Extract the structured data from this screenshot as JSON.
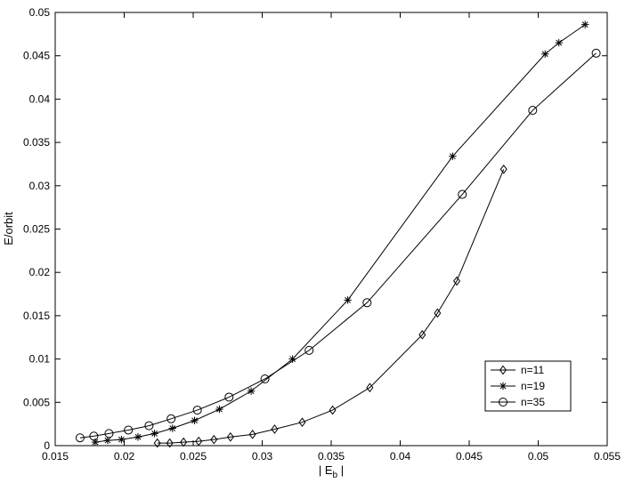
{
  "chart_data": {
    "type": "line",
    "title": "",
    "xlabel": "| E",
    "xlabel_sub": "b",
    "xlabel_suffix": " |",
    "ylabel": "E/orbit",
    "xlim": [
      0.015,
      0.055
    ],
    "ylim": [
      0,
      0.05
    ],
    "xticks": [
      0.015,
      0.02,
      0.025,
      0.03,
      0.035,
      0.04,
      0.045,
      0.05,
      0.055
    ],
    "xtick_labels": [
      "0.015",
      "0.02",
      "0.025",
      "0.03",
      "0.035",
      "0.04",
      "0.045",
      "0.05",
      "0.055"
    ],
    "yticks": [
      0,
      0.005,
      0.01,
      0.015,
      0.02,
      0.025,
      0.03,
      0.035,
      0.04,
      0.045,
      0.05
    ],
    "ytick_labels": [
      "0",
      "0.005",
      "0.01",
      "0.015",
      "0.02",
      "0.025",
      "0.03",
      "0.035",
      "0.04",
      "0.045",
      "0.05"
    ],
    "grid": false,
    "legend_position": "bottom-right",
    "series": [
      {
        "name": "n=11",
        "marker": "diamond",
        "x": [
          0.0224,
          0.0233,
          0.0243,
          0.0254,
          0.0265,
          0.0277,
          0.0293,
          0.0309,
          0.0329,
          0.0351,
          0.0378,
          0.0416,
          0.0427,
          0.0441,
          0.0475
        ],
        "y": [
          0.0003,
          0.0003,
          0.0004,
          0.0005,
          0.0007,
          0.001,
          0.0013,
          0.0019,
          0.0027,
          0.0041,
          0.0067,
          0.0128,
          0.0153,
          0.019,
          0.0319
        ]
      },
      {
        "name": "n=19",
        "marker": "star",
        "x": [
          0.0179,
          0.0188,
          0.0198,
          0.021,
          0.0222,
          0.0235,
          0.0251,
          0.0269,
          0.0292,
          0.0322,
          0.0362,
          0.0438,
          0.0505,
          0.0515,
          0.0534
        ],
        "y": [
          0.0004,
          0.0006,
          0.0007,
          0.001,
          0.0014,
          0.002,
          0.0029,
          0.0042,
          0.0063,
          0.01,
          0.0168,
          0.0334,
          0.0452,
          0.0465,
          0.0486
        ]
      },
      {
        "name": "n=35",
        "marker": "circle",
        "x": [
          0.0168,
          0.0178,
          0.0189,
          0.0203,
          0.0218,
          0.0234,
          0.0253,
          0.0276,
          0.0302,
          0.0334,
          0.0376,
          0.0445,
          0.0496,
          0.0542
        ],
        "y": [
          0.0009,
          0.0011,
          0.0014,
          0.0018,
          0.0023,
          0.0031,
          0.0041,
          0.0056,
          0.0077,
          0.011,
          0.0165,
          0.029,
          0.0387,
          0.0453
        ]
      }
    ]
  }
}
